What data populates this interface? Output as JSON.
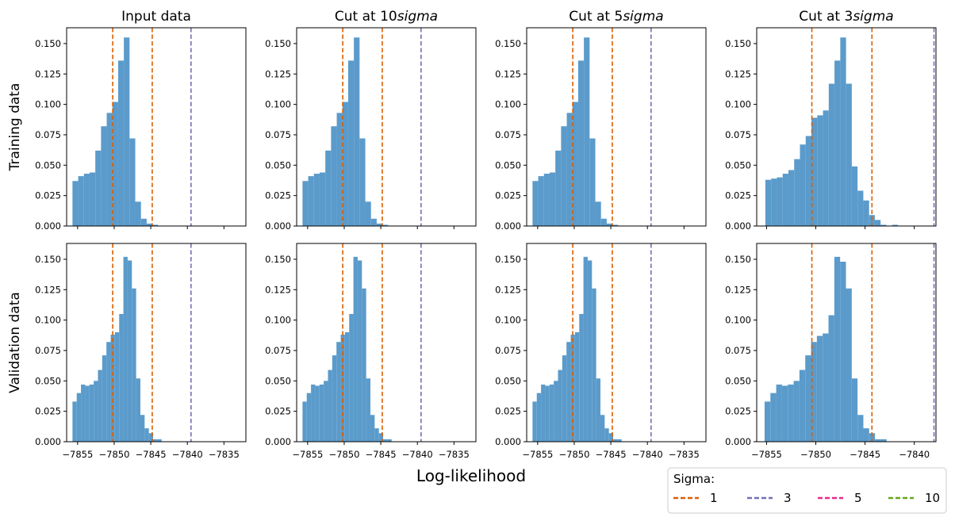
{
  "colors": {
    "bar": "#5b9bcb",
    "sigma_1": "#d95f02",
    "sigma_3": "#7570b3",
    "sigma_5": "#e7298a",
    "sigma_10": "#66a61e",
    "axis": "#000000"
  },
  "figure": {
    "xlabel": "Log-likelihood",
    "row_labels": [
      "Training data",
      "Validation data"
    ]
  },
  "legend": {
    "title": "Sigma:",
    "entries": [
      {
        "label": "1",
        "color": "#d95f02"
      },
      {
        "label": "3",
        "color": "#7570b3"
      },
      {
        "label": "5",
        "color": "#e7298a"
      },
      {
        "label": "10",
        "color": "#66a61e"
      }
    ],
    "placement": "bottom-right"
  },
  "chart_data": [
    {
      "type": "bar",
      "title": "Input data",
      "row": "Training data",
      "xlim": [
        -7856.5,
        -7832
      ],
      "ylim": [
        0,
        0.163
      ],
      "xticks": [
        -7855,
        -7850,
        -7845,
        -7840,
        -7835
      ],
      "show_xtick_labels": false,
      "yticks": [
        0.0,
        0.025,
        0.05,
        0.075,
        0.1,
        0.125,
        0.15
      ],
      "bin_width": 0.78,
      "bin_start": -7855.7,
      "values": [
        0.037,
        0.041,
        0.043,
        0.044,
        0.062,
        0.082,
        0.093,
        0.102,
        0.136,
        0.155,
        0.072,
        0.02,
        0.006,
        0.002,
        0.001,
        0,
        0,
        0,
        0
      ],
      "vlines": [
        {
          "x": -7850.2,
          "sigma": "1"
        },
        {
          "x": -7844.8,
          "sigma": "1"
        },
        {
          "x": -7839.5,
          "sigma": "3"
        }
      ]
    },
    {
      "type": "bar",
      "title": "Cut at 10$sigma$",
      "row": "Training data",
      "xlim": [
        -7856.5,
        -7832
      ],
      "ylim": [
        0,
        0.163
      ],
      "xticks": [
        -7855,
        -7850,
        -7845,
        -7840,
        -7835
      ],
      "show_xtick_labels": false,
      "yticks": [
        0.0,
        0.025,
        0.05,
        0.075,
        0.1,
        0.125,
        0.15
      ],
      "bin_width": 0.78,
      "bin_start": -7855.7,
      "values": [
        0.037,
        0.041,
        0.043,
        0.044,
        0.062,
        0.082,
        0.093,
        0.102,
        0.136,
        0.155,
        0.072,
        0.02,
        0.006,
        0.002,
        0.001,
        0,
        0,
        0,
        0
      ],
      "vlines": [
        {
          "x": -7850.2,
          "sigma": "1"
        },
        {
          "x": -7844.8,
          "sigma": "1"
        },
        {
          "x": -7839.5,
          "sigma": "3"
        }
      ]
    },
    {
      "type": "bar",
      "title": "Cut at 5$sigma$",
      "row": "Training data",
      "xlim": [
        -7856.5,
        -7832
      ],
      "ylim": [
        0,
        0.163
      ],
      "xticks": [
        -7855,
        -7850,
        -7845,
        -7840,
        -7835
      ],
      "show_xtick_labels": false,
      "yticks": [
        0.0,
        0.025,
        0.05,
        0.075,
        0.1,
        0.125,
        0.15
      ],
      "bin_width": 0.78,
      "bin_start": -7855.7,
      "values": [
        0.037,
        0.041,
        0.043,
        0.044,
        0.062,
        0.082,
        0.093,
        0.102,
        0.136,
        0.155,
        0.072,
        0.02,
        0.006,
        0.002,
        0.001,
        0,
        0,
        0,
        0
      ],
      "vlines": [
        {
          "x": -7850.2,
          "sigma": "1"
        },
        {
          "x": -7844.8,
          "sigma": "1"
        },
        {
          "x": -7839.5,
          "sigma": "3"
        }
      ]
    },
    {
      "type": "bar",
      "title": "Cut at 3$sigma$",
      "row": "Training data",
      "xlim": [
        -7856,
        -7837.8
      ],
      "ylim": [
        0,
        0.163
      ],
      "xticks": [
        -7855,
        -7850,
        -7845,
        -7840
      ],
      "show_xtick_labels": false,
      "yticks": [
        0.0,
        0.025,
        0.05,
        0.075,
        0.1,
        0.125,
        0.15
      ],
      "bin_width": 0.585,
      "bin_start": -7855.12,
      "values": [
        0.038,
        0.039,
        0.04,
        0.043,
        0.046,
        0.055,
        0.067,
        0.074,
        0.089,
        0.091,
        0.095,
        0.117,
        0.136,
        0.155,
        0.117,
        0.049,
        0.029,
        0.021,
        0.009,
        0.005,
        0.001,
        0,
        0.001
      ],
      "vlines": [
        {
          "x": -7850.4,
          "sigma": "1"
        },
        {
          "x": -7844.3,
          "sigma": "1"
        },
        {
          "x": -7838,
          "sigma": "3"
        }
      ]
    },
    {
      "type": "bar",
      "title": "",
      "row": "Validation data",
      "xlim": [
        -7856.5,
        -7832
      ],
      "ylim": [
        0,
        0.163
      ],
      "xticks": [
        -7855,
        -7850,
        -7845,
        -7840,
        -7835
      ],
      "show_xtick_labels": true,
      "xtick_labels": [
        "−7855",
        "−7850",
        "−7845",
        "−7840",
        "−7835"
      ],
      "yticks": [
        0.0,
        0.025,
        0.05,
        0.075,
        0.1,
        0.125,
        0.15
      ],
      "bin_width": 0.58,
      "bin_start": -7855.7,
      "values": [
        0.033,
        0.04,
        0.047,
        0.046,
        0.047,
        0.05,
        0.059,
        0.071,
        0.082,
        0.088,
        0.09,
        0.105,
        0.152,
        0.149,
        0.126,
        0.052,
        0.022,
        0.011,
        0.007,
        0.002,
        0.002,
        0,
        0
      ],
      "vlines": [
        {
          "x": -7850.2,
          "sigma": "1"
        },
        {
          "x": -7844.8,
          "sigma": "1"
        },
        {
          "x": -7839.5,
          "sigma": "3"
        }
      ]
    },
    {
      "type": "bar",
      "title": "",
      "row": "Validation data",
      "xlim": [
        -7856.5,
        -7832
      ],
      "ylim": [
        0,
        0.163
      ],
      "xticks": [
        -7855,
        -7850,
        -7845,
        -7840,
        -7835
      ],
      "show_xtick_labels": true,
      "xtick_labels": [
        "−7855",
        "−7850",
        "−7845",
        "−7840",
        "−7835"
      ],
      "yticks": [
        0.0,
        0.025,
        0.05,
        0.075,
        0.1,
        0.125,
        0.15
      ],
      "bin_width": 0.58,
      "bin_start": -7855.7,
      "values": [
        0.033,
        0.04,
        0.047,
        0.046,
        0.047,
        0.05,
        0.059,
        0.071,
        0.082,
        0.088,
        0.09,
        0.105,
        0.152,
        0.149,
        0.126,
        0.052,
        0.022,
        0.011,
        0.007,
        0.002,
        0.002,
        0,
        0
      ],
      "vlines": [
        {
          "x": -7850.2,
          "sigma": "1"
        },
        {
          "x": -7844.8,
          "sigma": "1"
        },
        {
          "x": -7839.5,
          "sigma": "3"
        }
      ]
    },
    {
      "type": "bar",
      "title": "",
      "row": "Validation data",
      "xlim": [
        -7856.5,
        -7832
      ],
      "ylim": [
        0,
        0.163
      ],
      "xticks": [
        -7855,
        -7850,
        -7845,
        -7840,
        -7835
      ],
      "show_xtick_labels": true,
      "xtick_labels": [
        "−7855",
        "−7850",
        "−7845",
        "−7840",
        "−7835"
      ],
      "yticks": [
        0.0,
        0.025,
        0.05,
        0.075,
        0.1,
        0.125,
        0.15
      ],
      "bin_width": 0.58,
      "bin_start": -7855.7,
      "values": [
        0.033,
        0.04,
        0.047,
        0.046,
        0.047,
        0.05,
        0.059,
        0.071,
        0.082,
        0.088,
        0.09,
        0.105,
        0.152,
        0.149,
        0.126,
        0.052,
        0.022,
        0.011,
        0.007,
        0.002,
        0.002,
        0,
        0
      ],
      "vlines": [
        {
          "x": -7850.2,
          "sigma": "1"
        },
        {
          "x": -7844.8,
          "sigma": "1"
        },
        {
          "x": -7839.5,
          "sigma": "3"
        }
      ]
    },
    {
      "type": "bar",
      "title": "",
      "row": "Validation data",
      "xlim": [
        -7856,
        -7837.8
      ],
      "ylim": [
        0,
        0.163
      ],
      "xticks": [
        -7855,
        -7850,
        -7845,
        -7840
      ],
      "show_xtick_labels": true,
      "xtick_labels": [
        "−7855",
        "−7850",
        "−7845",
        "−7840"
      ],
      "yticks": [
        0.0,
        0.025,
        0.05,
        0.075,
        0.1,
        0.125,
        0.15
      ],
      "bin_width": 0.59,
      "bin_start": -7855.2,
      "values": [
        0.033,
        0.04,
        0.047,
        0.046,
        0.047,
        0.05,
        0.059,
        0.071,
        0.082,
        0.087,
        0.089,
        0.104,
        0.152,
        0.148,
        0.126,
        0.052,
        0.022,
        0.011,
        0.007,
        0.002,
        0.002,
        0,
        0
      ],
      "vlines": [
        {
          "x": -7850.4,
          "sigma": "1"
        },
        {
          "x": -7844.3,
          "sigma": "1"
        },
        {
          "x": -7838,
          "sigma": "3"
        }
      ]
    }
  ]
}
